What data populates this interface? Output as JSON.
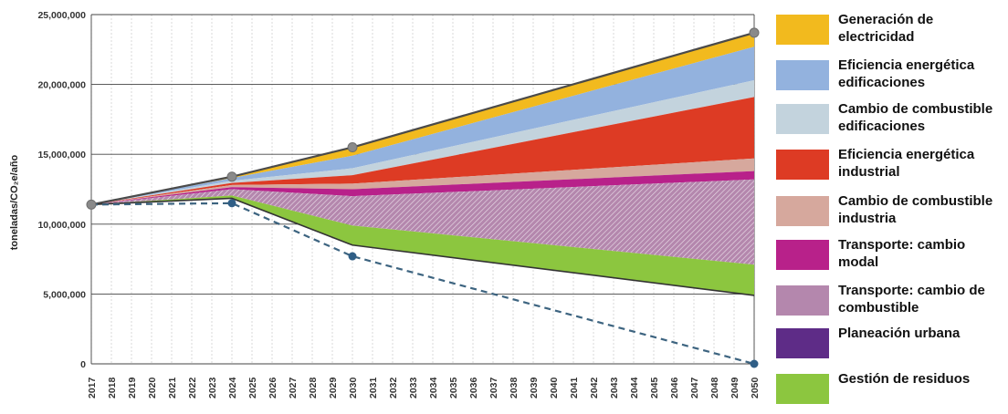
{
  "chart_data": {
    "type": "area",
    "title": "",
    "xlabel": "",
    "ylabel": "toneladas/CO₂e/año",
    "ylim": [
      0,
      25000000
    ],
    "yticks": [
      0,
      5000000,
      10000000,
      15000000,
      20000000,
      25000000
    ],
    "ytick_labels": [
      "0",
      "5,000,000",
      "10,000,000",
      "15,000,000",
      "20,000,000",
      "25,000,000"
    ],
    "x": [
      2017,
      2018,
      2019,
      2020,
      2021,
      2022,
      2023,
      2024,
      2025,
      2026,
      2027,
      2028,
      2029,
      2030,
      2031,
      2032,
      2033,
      2034,
      2035,
      2036,
      2037,
      2038,
      2039,
      2040,
      2041,
      2042,
      2043,
      2044,
      2045,
      2046,
      2047,
      2048,
      2049,
      2050
    ],
    "xtick_labels": [
      "2017",
      "2018",
      "2019",
      "2020",
      "2021",
      "2022",
      "2023",
      "2024",
      "2025",
      "2026",
      "2027",
      "2028",
      "2029",
      "2030",
      "2031",
      "2032",
      "2033",
      "2034",
      "2035",
      "2036",
      "2037",
      "2038",
      "2039",
      "2040",
      "2041",
      "2042",
      "2043",
      "2044",
      "2045",
      "2046",
      "2047",
      "2048",
      "2049",
      "2050"
    ],
    "grid": true,
    "legend_position": "right",
    "baseline": {
      "description": "total emissions (upper boundary)",
      "x": [
        2017,
        2024,
        2030,
        2050
      ],
      "values": [
        11400000,
        13400000,
        15500000,
        23700000
      ]
    },
    "series": [
      {
        "name": "Generación de electricidad",
        "color": "#F2BA1E",
        "hatched": false,
        "x": [
          2017,
          2024,
          2030,
          2050
        ],
        "upper": [
          11400000,
          13400000,
          15500000,
          23700000
        ],
        "lower": [
          11400000,
          13300000,
          14900000,
          22700000
        ]
      },
      {
        "name": "Eficiencia energética edificaciones",
        "color": "#93B2DE",
        "hatched": false,
        "x": [
          2017,
          2024,
          2030,
          2050
        ],
        "upper": [
          11400000,
          13300000,
          14900000,
          22700000
        ],
        "lower": [
          11400000,
          13100000,
          14000000,
          20300000
        ]
      },
      {
        "name": "Cambio de combustible edificaciones",
        "color": "#C3D3DD",
        "hatched": false,
        "x": [
          2017,
          2024,
          2030,
          2050
        ],
        "upper": [
          11400000,
          13100000,
          14000000,
          20300000
        ],
        "lower": [
          11400000,
          12950000,
          13500000,
          19100000
        ]
      },
      {
        "name": "Eficiencia energética industrial",
        "color": "#DD3B24",
        "hatched": false,
        "x": [
          2017,
          2024,
          2030,
          2050
        ],
        "upper": [
          11400000,
          12950000,
          13500000,
          19100000
        ],
        "lower": [
          11400000,
          12800000,
          12900000,
          14700000
        ]
      },
      {
        "name": "Cambio de combustible industria",
        "color": "#D6A89D",
        "hatched": false,
        "x": [
          2017,
          2024,
          2030,
          2050
        ],
        "upper": [
          11400000,
          12800000,
          12900000,
          14700000
        ],
        "lower": [
          11400000,
          12650000,
          12500000,
          13800000
        ]
      },
      {
        "name": "Transporte: cambio modal",
        "color": "#B8218A",
        "hatched": false,
        "x": [
          2017,
          2024,
          2030,
          2050
        ],
        "upper": [
          11400000,
          12650000,
          12500000,
          13800000
        ],
        "lower": [
          11400000,
          12500000,
          12000000,
          13200000
        ]
      },
      {
        "name": "Transporte: cambio de combustible",
        "color": "#B487AD",
        "hatched": true,
        "x": [
          2017,
          2024,
          2030,
          2050
        ],
        "upper": [
          11400000,
          12500000,
          12000000,
          13200000
        ],
        "lower": [
          11400000,
          12050000,
          9900000,
          7100000
        ]
      },
      {
        "name": "Planeación urbana",
        "color": "#5E2C87",
        "hatched": false,
        "x": [
          2017,
          2024,
          2030,
          2050
        ],
        "upper": [
          11400000,
          12050000,
          9900000,
          7100000
        ],
        "lower": [
          11400000,
          12050000,
          9900000,
          7100000
        ]
      },
      {
        "name": "Gestión de residuos",
        "color": "#8CC63F",
        "hatched": false,
        "x": [
          2017,
          2024,
          2030,
          2050
        ],
        "upper": [
          11400000,
          12050000,
          9900000,
          7100000
        ],
        "lower": [
          11400000,
          11850000,
          8500000,
          4900000
        ]
      }
    ],
    "reduced_path": {
      "x": [
        2017,
        2024,
        2030,
        2050
      ],
      "values": [
        11400000,
        11850000,
        8500000,
        4900000
      ]
    },
    "target_line": {
      "style": "dashed",
      "color": "#3D6480",
      "x": [
        2017,
        2024,
        2030,
        2050
      ],
      "values": [
        11400000,
        11500000,
        7700000,
        0
      ]
    },
    "markers": {
      "baseline_color": "#8A8A8A",
      "target_color": "#2F5E86"
    }
  },
  "legend": {
    "items": [
      {
        "label": "Generación de electricidad",
        "color": "#F2BA1E"
      },
      {
        "label": "Eficiencia energética edificaciones",
        "color": "#93B2DE"
      },
      {
        "label": "Cambio de combustible edificaciones",
        "color": "#C3D3DD"
      },
      {
        "label": "Eficiencia energética industrial",
        "color": "#DD3B24"
      },
      {
        "label": "Cambio de combustible industria",
        "color": "#D6A89D"
      },
      {
        "label": "Transporte: cambio modal",
        "color": "#B8218A"
      },
      {
        "label": "Transporte: cambio de combustible",
        "color": "#B487AD"
      },
      {
        "label": "Planeación urbana",
        "color": "#5E2C87"
      },
      {
        "label": "Gestión de residuos",
        "color": "#8CC63F"
      }
    ]
  }
}
